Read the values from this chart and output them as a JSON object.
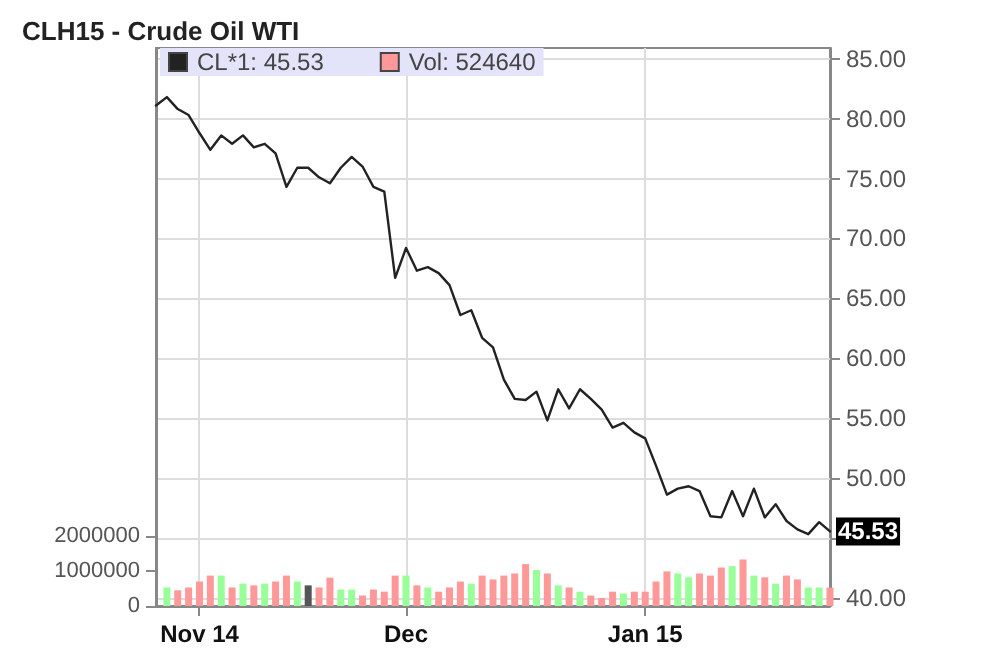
{
  "chart_data": {
    "type": "line",
    "title": "CLH15 - Crude Oil WTI",
    "categories": [
      null,
      null,
      null,
      null,
      "Nov 14",
      null,
      null,
      null,
      null,
      null,
      null,
      null,
      null,
      null,
      null,
      null,
      null,
      null,
      null,
      null,
      null,
      null,
      null,
      "Dec",
      null,
      null,
      null,
      null,
      null,
      null,
      null,
      null,
      null,
      null,
      null,
      null,
      null,
      null,
      null,
      null,
      null,
      null,
      null,
      null,
      null,
      "Jan 15",
      null,
      null,
      null,
      null,
      null,
      null,
      null,
      null,
      null,
      null,
      null,
      null,
      null,
      null,
      null,
      null,
      null
    ],
    "series": [
      {
        "name": "CL*1: 45.53",
        "color": "#222222",
        "values": [
          81.1,
          81.8,
          80.8,
          80.3,
          78.8,
          77.4,
          78.6,
          77.9,
          78.6,
          77.6,
          77.9,
          77.1,
          74.3,
          75.9,
          75.9,
          75.1,
          74.6,
          75.9,
          76.8,
          76.0,
          74.3,
          73.9,
          66.7,
          69.2,
          67.3,
          67.6,
          67.1,
          66.1,
          63.6,
          64.0,
          61.7,
          60.9,
          58.2,
          56.6,
          56.5,
          57.2,
          54.8,
          57.4,
          55.8,
          57.4,
          56.6,
          55.7,
          54.2,
          54.6,
          53.8,
          53.3,
          51.0,
          48.6,
          49.1,
          49.3,
          48.9,
          46.8,
          46.7,
          48.9,
          46.8,
          49.1,
          46.7,
          47.8,
          46.4,
          45.7,
          45.3,
          46.3,
          45.53
        ],
        "value_labels": [
          null,
          null,
          null,
          null,
          null,
          null,
          null,
          null,
          null,
          null,
          null,
          null,
          null,
          null,
          null,
          null,
          null,
          null,
          null,
          null,
          null,
          null,
          null,
          null,
          null,
          null,
          null,
          null,
          null,
          null,
          null,
          null,
          null,
          null,
          null,
          null,
          null,
          null,
          null,
          null,
          null,
          null,
          null,
          null,
          null,
          null,
          null,
          null,
          null,
          null,
          null,
          null,
          null,
          null,
          null,
          null,
          null,
          null,
          null,
          null,
          null,
          null,
          "45.53"
        ]
      },
      {
        "name": "Vol: 524640",
        "type": "bar",
        "axis": "y2",
        "color": "#ff9999",
        "values": [
          null,
          530000,
          450000,
          530000,
          700000,
          870000,
          870000,
          530000,
          640000,
          590000,
          640000,
          700000,
          870000,
          700000,
          590000,
          530000,
          810000,
          470000,
          470000,
          300000,
          470000,
          410000,
          870000,
          870000,
          590000,
          530000,
          410000,
          530000,
          700000,
          640000,
          870000,
          760000,
          870000,
          930000,
          1200000,
          1030000,
          930000,
          590000,
          530000,
          410000,
          300000,
          230000,
          410000,
          360000,
          410000,
          410000,
          700000,
          990000,
          930000,
          820000,
          930000,
          870000,
          1100000,
          1140000,
          1330000,
          870000,
          820000,
          640000,
          870000,
          760000,
          530000,
          530000,
          524640
        ],
        "colors": [
          "#ff9999",
          "#99ff99",
          "#ff9999",
          "#ff9999",
          "#ff9999",
          "#ff9999",
          "#99ff99",
          "#ff9999",
          "#99ff99",
          "#ff9999",
          "#99ff99",
          "#ff9999",
          "#ff9999",
          "#99ff99",
          "#555555",
          "#ff9999",
          "#ff9999",
          "#99ff99",
          "#99ff99",
          "#ff9999",
          "#ff9999",
          "#ff9999",
          "#ff9999",
          "#99ff99",
          "#ff9999",
          "#99ff99",
          "#ff9999",
          "#ff9999",
          "#ff9999",
          "#99ff99",
          "#ff9999",
          "#ff9999",
          "#ff9999",
          "#ff9999",
          "#ff9999",
          "#99ff99",
          "#ff9999",
          "#99ff99",
          "#ff9999",
          "#99ff99",
          "#ff9999",
          "#ff9999",
          "#ff9999",
          "#99ff99",
          "#ff9999",
          "#ff9999",
          "#ff9999",
          "#ff9999",
          "#99ff99",
          "#99ff99",
          "#ff9999",
          "#ff9999",
          "#ff9999",
          "#99ff99",
          "#ff9999",
          "#99ff99",
          "#ff9999",
          "#99ff99",
          "#ff9999",
          "#ff9999",
          "#99ff99",
          "#99ff99",
          "#ff9999"
        ]
      }
    ],
    "ylim": [
      39.3,
      85.9
    ],
    "yticks": [
      {
        "value": 40,
        "label": "40.00"
      },
      {
        "value": 45,
        "label": null
      },
      {
        "value": 50,
        "label": "50.00"
      },
      {
        "value": 55,
        "label": "55.00"
      },
      {
        "value": 60,
        "label": "60.00"
      },
      {
        "value": 65,
        "label": "65.00"
      },
      {
        "value": 70,
        "label": "70.00"
      },
      {
        "value": 75,
        "label": "75.00"
      },
      {
        "value": 80,
        "label": "80.00"
      },
      {
        "value": 85,
        "label": "85.00"
      }
    ],
    "y2lim": [
      0,
      15960000
    ],
    "y2ticks": [
      0,
      1000000,
      2000000
    ],
    "grid": true,
    "legend": "top left",
    "marker": "none",
    "line_style": "solid"
  }
}
